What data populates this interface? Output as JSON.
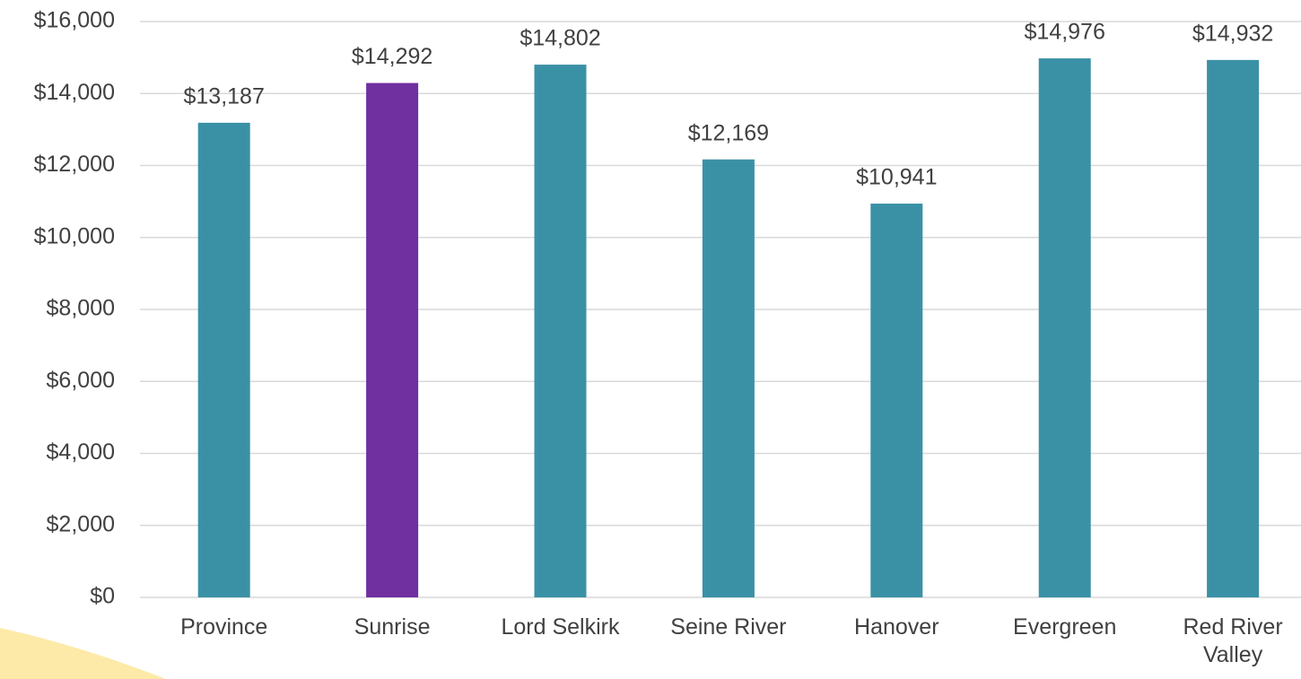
{
  "chart_data": {
    "type": "bar",
    "categories": [
      "Province",
      "Sunrise",
      "Lord Selkirk",
      "Seine River",
      "Hanover",
      "Evergreen",
      "Red River Valley"
    ],
    "values": [
      13187,
      14292,
      14802,
      12169,
      10941,
      14976,
      14932
    ],
    "value_labels": [
      "$13,187",
      "$14,292",
      "$14,802",
      "$12,169",
      "$10,941",
      "$14,976",
      "$14,932"
    ],
    "colors": [
      "#3a91a6",
      "#7030a0",
      "#3a91a6",
      "#3a91a6",
      "#3a91a6",
      "#3a91a6",
      "#3a91a6"
    ],
    "ylim": [
      0,
      16000
    ],
    "yticks": [
      {
        "value": 0,
        "label": "$0"
      },
      {
        "value": 2000,
        "label": "$2,000"
      },
      {
        "value": 4000,
        "label": "$4,000"
      },
      {
        "value": 6000,
        "label": "$6,000"
      },
      {
        "value": 8000,
        "label": "$8,000"
      },
      {
        "value": 10000,
        "label": "$10,000"
      },
      {
        "value": 12000,
        "label": "$12,000"
      },
      {
        "value": 14000,
        "label": "$14,000"
      },
      {
        "value": 16000,
        "label": "$16,000"
      }
    ],
    "grid": true
  }
}
